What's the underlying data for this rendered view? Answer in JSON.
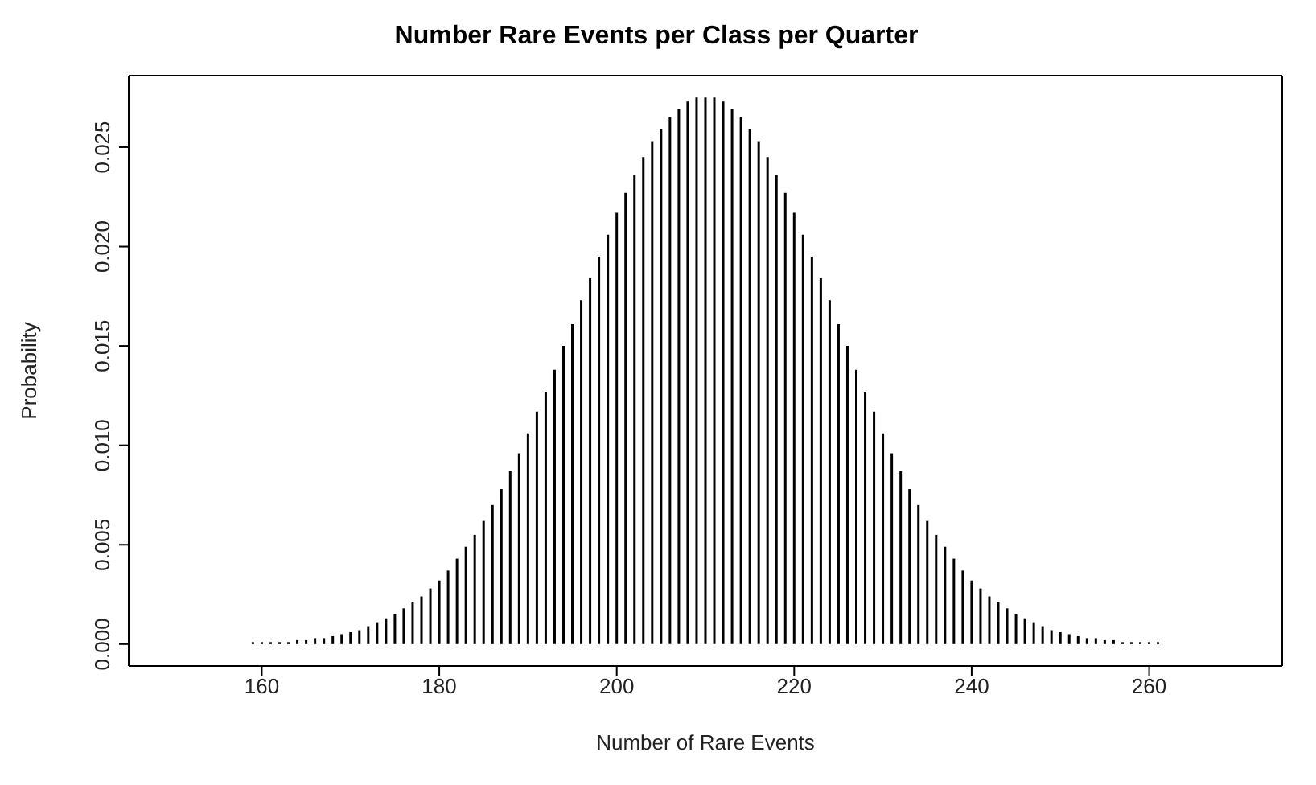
{
  "chart_data": {
    "type": "bar",
    "title": "Number Rare Events per Class per Quarter",
    "xlabel": "Number of Rare Events",
    "ylabel": "Probability",
    "color": "#000000",
    "x": [
      150,
      151,
      152,
      153,
      154,
      155,
      156,
      157,
      158,
      159,
      160,
      161,
      162,
      163,
      164,
      165,
      166,
      167,
      168,
      169,
      170,
      171,
      172,
      173,
      174,
      175,
      176,
      177,
      178,
      179,
      180,
      181,
      182,
      183,
      184,
      185,
      186,
      187,
      188,
      189,
      190,
      191,
      192,
      193,
      194,
      195,
      196,
      197,
      198,
      199,
      200,
      201,
      202,
      203,
      204,
      205,
      206,
      207,
      208,
      209,
      210,
      211,
      212,
      213,
      214,
      215,
      216,
      217,
      218,
      219,
      220,
      221,
      222,
      223,
      224,
      225,
      226,
      227,
      228,
      229,
      230,
      231,
      232,
      233,
      234,
      235,
      236,
      237,
      238,
      239,
      240,
      241,
      242,
      243,
      244,
      245,
      246,
      247,
      248,
      249,
      250,
      251,
      252,
      253,
      254,
      255,
      256,
      257,
      258,
      259,
      260,
      261,
      262,
      263,
      264,
      265,
      266,
      267,
      268,
      269,
      270
    ],
    "values": [
      0,
      0,
      0,
      0,
      0,
      0,
      0,
      0,
      0,
      0.0001,
      0.0001,
      0.0001,
      0.0001,
      0.0001,
      0.0002,
      0.0002,
      0.0003,
      0.0003,
      0.0004,
      0.0005,
      0.0006,
      0.0007,
      0.0009,
      0.0011,
      0.0013,
      0.0015,
      0.0018,
      0.0021,
      0.0024,
      0.0028,
      0.0032,
      0.0037,
      0.0043,
      0.0049,
      0.0055,
      0.0062,
      0.007,
      0.0078,
      0.0087,
      0.0096,
      0.0106,
      0.0117,
      0.0127,
      0.0138,
      0.015,
      0.0161,
      0.0173,
      0.0184,
      0.0195,
      0.0206,
      0.0217,
      0.0227,
      0.0236,
      0.0245,
      0.0253,
      0.0259,
      0.0265,
      0.0269,
      0.0273,
      0.0275,
      0.0275,
      0.0275,
      0.0273,
      0.0269,
      0.0265,
      0.0259,
      0.0253,
      0.0245,
      0.0236,
      0.0227,
      0.0217,
      0.0206,
      0.0195,
      0.0184,
      0.0173,
      0.0161,
      0.015,
      0.0138,
      0.0127,
      0.0117,
      0.0106,
      0.0096,
      0.0087,
      0.0078,
      0.007,
      0.0062,
      0.0055,
      0.0049,
      0.0043,
      0.0037,
      0.0032,
      0.0028,
      0.0024,
      0.0021,
      0.0018,
      0.0015,
      0.0013,
      0.0011,
      0.0009,
      0.0007,
      0.0006,
      0.0005,
      0.0004,
      0.0003,
      0.0003,
      0.0002,
      0.0002,
      0.0001,
      0.0001,
      0.0001,
      0.0001,
      0.0001,
      0,
      0,
      0,
      0,
      0,
      0,
      0,
      0,
      0
    ],
    "xlim": [
      145,
      275
    ],
    "xticks": [
      160,
      180,
      200,
      220,
      240,
      260
    ],
    "ylim": [
      -0.0011,
      0.0286
    ],
    "yticks": [
      {
        "value": 0,
        "label": "0.000"
      },
      {
        "value": 0.005,
        "label": "0.005"
      },
      {
        "value": 0.01,
        "label": "0.010"
      },
      {
        "value": 0.015,
        "label": "0.015"
      },
      {
        "value": 0.02,
        "label": "0.020"
      },
      {
        "value": 0.025,
        "label": "0.025"
      }
    ],
    "grid": false
  }
}
